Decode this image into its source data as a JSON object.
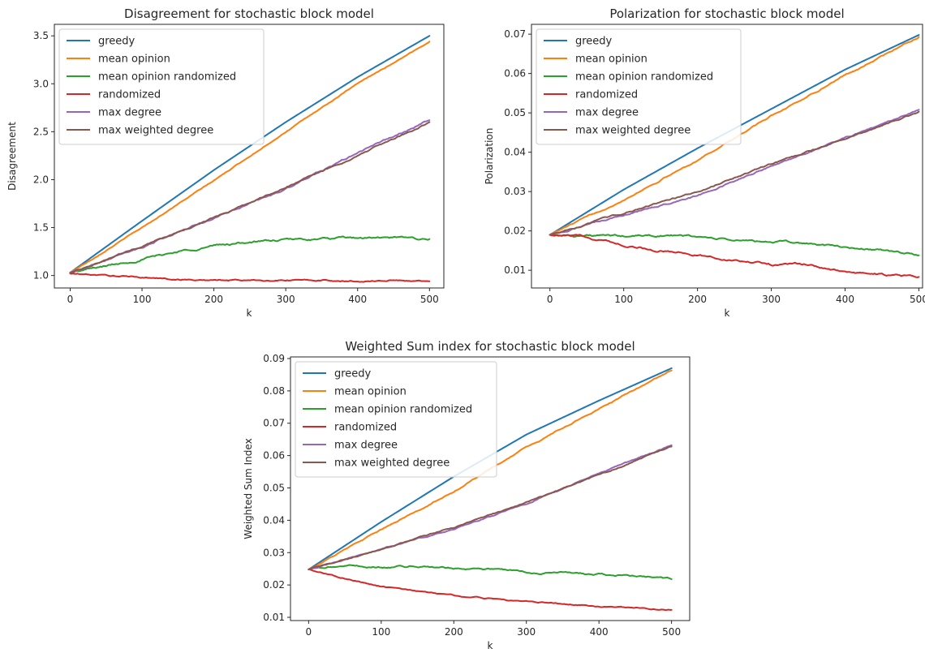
{
  "chart_data": [
    {
      "type": "line",
      "title": "Disagreement for stochastic block model",
      "xlabel": "k",
      "ylabel": "Disagreement",
      "xlim": [
        -22,
        520
      ],
      "ylim": [
        0.87,
        3.62
      ],
      "xticks": [
        0,
        100,
        200,
        300,
        400,
        500
      ],
      "yticks": [
        1.0,
        1.5,
        2.0,
        2.5,
        3.0,
        3.5
      ],
      "ytick_decimals": 1,
      "legend": "top-left",
      "grid": false,
      "series": [
        {
          "name": "greedy",
          "color": "#1f77b4",
          "x": [
            0,
            100,
            200,
            300,
            400,
            500
          ],
          "y": [
            1.03,
            1.57,
            2.1,
            2.6,
            3.07,
            3.5
          ],
          "noise": 0
        },
        {
          "name": "mean opinion",
          "color": "#ff7f0e",
          "x": [
            0,
            100,
            200,
            300,
            400,
            500
          ],
          "y": [
            1.03,
            1.5,
            1.99,
            2.5,
            3.0,
            3.44
          ],
          "noise": 0.005
        },
        {
          "name": "mean opinion randomized",
          "color": "#2ca02c",
          "x": [
            0,
            50,
            100,
            150,
            200,
            250,
            300,
            350,
            400,
            450,
            500
          ],
          "y": [
            1.03,
            1.1,
            1.17,
            1.25,
            1.31,
            1.35,
            1.37,
            1.38,
            1.39,
            1.39,
            1.38
          ],
          "noise": 0.012
        },
        {
          "name": "randomized",
          "color": "#d62728",
          "x": [
            0,
            50,
            100,
            150,
            200,
            250,
            300,
            350,
            400,
            450,
            500
          ],
          "y": [
            1.02,
            1.0,
            0.98,
            0.96,
            0.95,
            0.95,
            0.95,
            0.95,
            0.94,
            0.95,
            0.94
          ],
          "noise": 0.008
        },
        {
          "name": "max degree",
          "color": "#9467bd",
          "x": [
            0,
            100,
            200,
            300,
            400,
            500
          ],
          "y": [
            1.03,
            1.3,
            1.6,
            1.9,
            2.28,
            2.62
          ],
          "noise": 0.01
        },
        {
          "name": "max weighted degree",
          "color": "#8c564b",
          "x": [
            0,
            100,
            200,
            300,
            400,
            500
          ],
          "y": [
            1.03,
            1.31,
            1.6,
            1.92,
            2.25,
            2.6
          ],
          "noise": 0.008
        }
      ]
    },
    {
      "type": "line",
      "title": "Polarization for stochastic block model",
      "xlabel": "k",
      "ylabel": "Polarization",
      "xlim": [
        -25,
        505
      ],
      "ylim": [
        0.0055,
        0.0725
      ],
      "xticks": [
        0,
        100,
        200,
        300,
        400,
        500
      ],
      "yticks": [
        0.01,
        0.02,
        0.03,
        0.04,
        0.05,
        0.06,
        0.07
      ],
      "ytick_decimals": 2,
      "legend": "top-left",
      "grid": false,
      "series": [
        {
          "name": "greedy",
          "color": "#1f77b4",
          "x": [
            0,
            100,
            200,
            300,
            400,
            500
          ],
          "y": [
            0.019,
            0.0305,
            0.041,
            0.051,
            0.061,
            0.0698
          ],
          "noise": 0
        },
        {
          "name": "mean opinion",
          "color": "#ff7f0e",
          "x": [
            0,
            100,
            200,
            300,
            400,
            500
          ],
          "y": [
            0.019,
            0.028,
            0.038,
            0.0492,
            0.0595,
            0.0693
          ],
          "noise": 0.0002
        },
        {
          "name": "mean opinion randomized",
          "color": "#2ca02c",
          "x": [
            0,
            50,
            100,
            150,
            200,
            250,
            300,
            350,
            400,
            450,
            500
          ],
          "y": [
            0.019,
            0.0188,
            0.0186,
            0.0189,
            0.0185,
            0.0176,
            0.0172,
            0.0168,
            0.0158,
            0.0151,
            0.0138
          ],
          "noise": 0.0003
        },
        {
          "name": "randomized",
          "color": "#d62728",
          "x": [
            0,
            50,
            100,
            150,
            200,
            250,
            300,
            350,
            400,
            450,
            500
          ],
          "y": [
            0.019,
            0.0185,
            0.0165,
            0.015,
            0.014,
            0.0125,
            0.0115,
            0.0115,
            0.0095,
            0.0088,
            0.0083
          ],
          "noise": 0.0003
        },
        {
          "name": "max degree",
          "color": "#9467bd",
          "x": [
            0,
            100,
            200,
            300,
            400,
            500
          ],
          "y": [
            0.019,
            0.024,
            0.029,
            0.0365,
            0.0435,
            0.0508
          ],
          "noise": 0.0002
        },
        {
          "name": "max weighted degree",
          "color": "#8c564b",
          "x": [
            0,
            100,
            200,
            300,
            400,
            500
          ],
          "y": [
            0.019,
            0.0245,
            0.03,
            0.037,
            0.0435,
            0.0503
          ],
          "noise": 0.0002
        }
      ]
    },
    {
      "type": "line",
      "title": "Weighted Sum index for stochastic block model",
      "xlabel": "k",
      "ylabel": "Weighted Sum Index",
      "xlim": [
        -25,
        525
      ],
      "ylim": [
        0.009,
        0.0905
      ],
      "xticks": [
        0,
        100,
        200,
        300,
        400,
        500
      ],
      "yticks": [
        0.01,
        0.02,
        0.03,
        0.04,
        0.05,
        0.06,
        0.07,
        0.08,
        0.09
      ],
      "ytick_decimals": 2,
      "legend": "top-left",
      "grid": false,
      "series": [
        {
          "name": "greedy",
          "color": "#1f77b4",
          "x": [
            0,
            100,
            200,
            300,
            400,
            500
          ],
          "y": [
            0.0248,
            0.0395,
            0.0535,
            0.0665,
            0.077,
            0.087
          ],
          "noise": 0
        },
        {
          "name": "mean opinion",
          "color": "#ff7f0e",
          "x": [
            0,
            100,
            200,
            300,
            400,
            500
          ],
          "y": [
            0.0248,
            0.037,
            0.049,
            0.0625,
            0.0745,
            0.0863
          ],
          "noise": 0.0002
        },
        {
          "name": "mean opinion randomized",
          "color": "#2ca02c",
          "x": [
            0,
            50,
            100,
            150,
            200,
            250,
            300,
            350,
            400,
            450,
            500
          ],
          "y": [
            0.0248,
            0.026,
            0.0255,
            0.0258,
            0.0252,
            0.025,
            0.024,
            0.0238,
            0.0232,
            0.0228,
            0.0218
          ],
          "noise": 0.0003
        },
        {
          "name": "randomized",
          "color": "#d62728",
          "x": [
            0,
            50,
            100,
            150,
            200,
            250,
            300,
            350,
            400,
            450,
            500
          ],
          "y": [
            0.0248,
            0.022,
            0.0195,
            0.018,
            0.0168,
            0.0158,
            0.015,
            0.0142,
            0.0135,
            0.013,
            0.0123
          ],
          "noise": 0.0002
        },
        {
          "name": "max degree",
          "color": "#9467bd",
          "x": [
            0,
            100,
            200,
            300,
            400,
            500
          ],
          "y": [
            0.0248,
            0.031,
            0.0375,
            0.045,
            0.0545,
            0.0632
          ],
          "noise": 0.0002
        },
        {
          "name": "max weighted degree",
          "color": "#8c564b",
          "x": [
            0,
            100,
            200,
            300,
            400,
            500
          ],
          "y": [
            0.0248,
            0.031,
            0.0378,
            0.0455,
            0.054,
            0.0628
          ],
          "noise": 0.0002
        }
      ]
    }
  ]
}
